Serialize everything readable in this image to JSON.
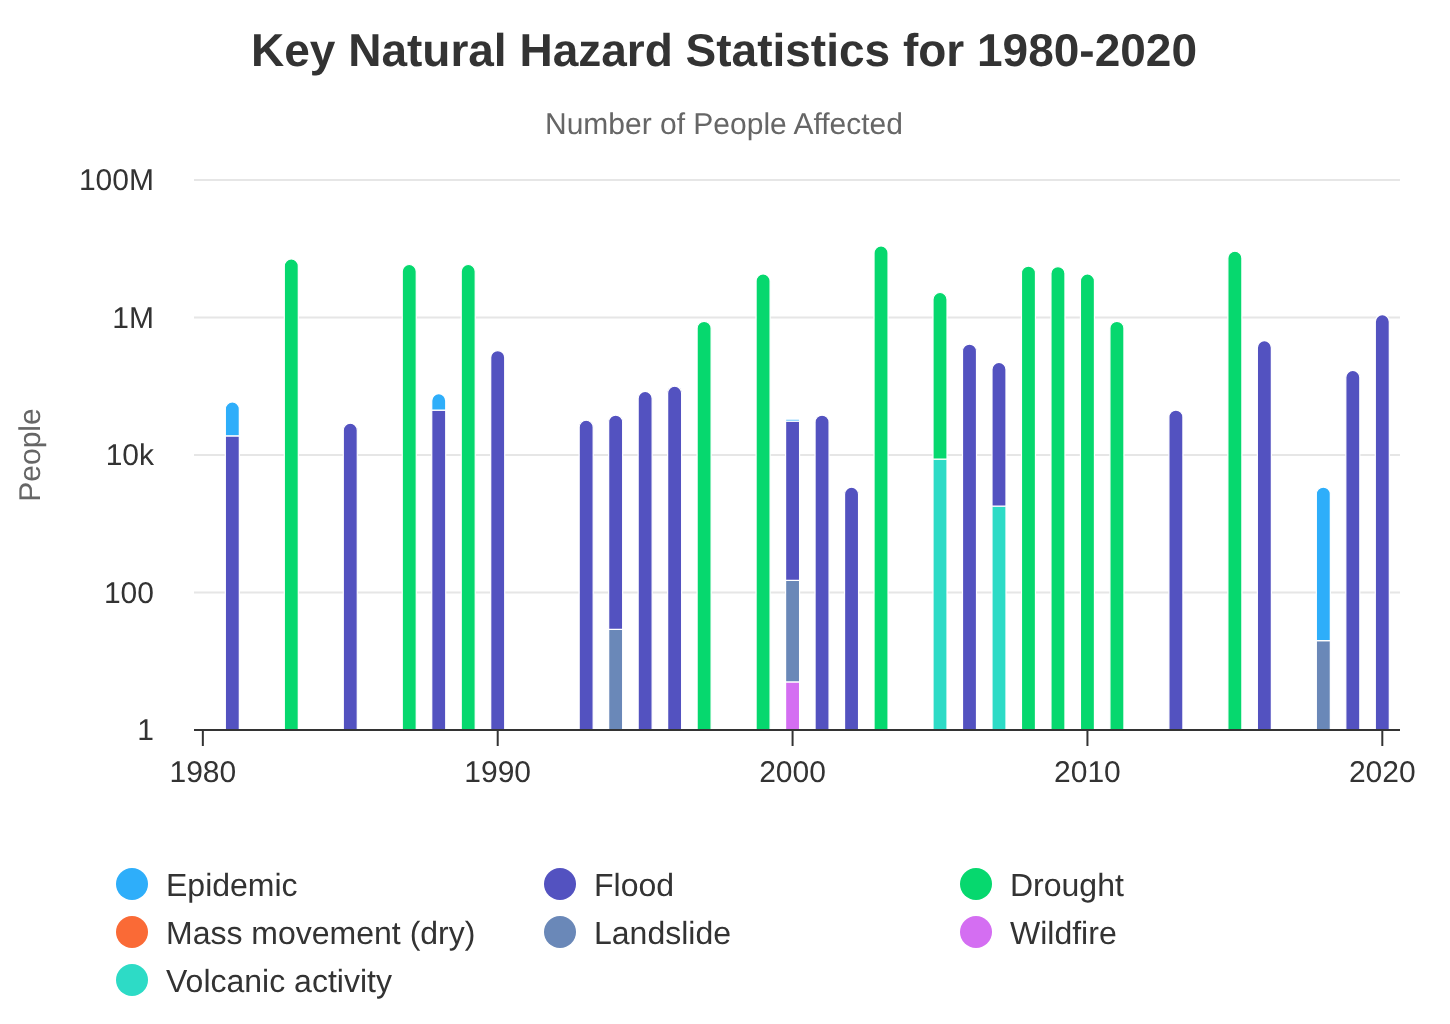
{
  "chart_data": {
    "type": "bar",
    "title": "Key Natural Hazard Statistics for 1980-2020",
    "subtitle": "Number of People Affected",
    "ylabel": "People",
    "stacked": true,
    "log": true,
    "grid": "y",
    "legend": "bottom",
    "x": [
      1981,
      1983,
      1985,
      1987,
      1988,
      1989,
      1990,
      1993,
      1994,
      1995,
      1996,
      1997,
      1999,
      2000,
      2001,
      2002,
      2003,
      2005,
      2006,
      2007,
      2008,
      2009,
      2010,
      2011,
      2013,
      2015,
      2016,
      2018,
      2019,
      2020
    ],
    "xlim": [
      1979.7,
      2020.6
    ],
    "xticks": [
      1980,
      1990,
      2000,
      2010,
      2020
    ],
    "ylim": [
      1,
      100000000
    ],
    "yticks": [
      {
        "value": 1,
        "label": "1"
      },
      {
        "value": 100,
        "label": "100"
      },
      {
        "value": 10000,
        "label": "10k"
      },
      {
        "value": 1000000,
        "label": "1M"
      },
      {
        "value": 100000000,
        "label": "100M"
      }
    ],
    "series": [
      {
        "name": "Volcanic activity",
        "color": "#2ddbc6",
        "values": [
          null,
          null,
          null,
          null,
          null,
          null,
          null,
          null,
          null,
          null,
          null,
          null,
          null,
          null,
          null,
          null,
          null,
          8700,
          null,
          1800,
          null,
          null,
          null,
          null,
          null,
          null,
          null,
          null,
          null,
          null
        ]
      },
      {
        "name": "Wildfire",
        "color": "#d46ef2",
        "values": [
          null,
          null,
          null,
          null,
          null,
          null,
          null,
          null,
          null,
          null,
          null,
          null,
          null,
          5,
          null,
          null,
          null,
          null,
          null,
          null,
          null,
          null,
          null,
          null,
          null,
          null,
          null,
          null,
          null,
          null
        ]
      },
      {
        "name": "Landslide",
        "color": "#6a88b8",
        "values": [
          null,
          null,
          null,
          null,
          null,
          null,
          null,
          null,
          29,
          null,
          null,
          null,
          null,
          145,
          null,
          null,
          null,
          null,
          null,
          null,
          null,
          null,
          null,
          null,
          null,
          null,
          null,
          20,
          null,
          null
        ]
      },
      {
        "name": "Mass movement (dry)",
        "color": "#fa6a36",
        "values": [
          null,
          null,
          null,
          null,
          null,
          null,
          null,
          null,
          null,
          null,
          null,
          null,
          null,
          null,
          null,
          null,
          null,
          null,
          null,
          null,
          null,
          null,
          null,
          null,
          null,
          null,
          null,
          null,
          null,
          null
        ]
      },
      {
        "name": "Drought",
        "color": "#06d86e",
        "values": [
          null,
          7100000,
          null,
          5900000,
          null,
          5900000,
          null,
          null,
          null,
          null,
          null,
          880000,
          4300000,
          null,
          null,
          null,
          11000000,
          2300000,
          null,
          null,
          5600000,
          5500000,
          4300000,
          880000,
          null,
          9200000,
          null,
          null,
          null,
          null
        ]
      },
      {
        "name": "Flood",
        "color": "#5352c0",
        "values": [
          19000,
          null,
          29000,
          null,
          45000,
          null,
          330000,
          32000,
          38000,
          84000,
          100000,
          null,
          null,
          31000,
          38000,
          3400,
          null,
          null,
          410000,
          220000,
          null,
          null,
          null,
          null,
          45000,
          null,
          460000,
          null,
          170000,
          1100000
        ]
      },
      {
        "name": "Epidemic",
        "color": "#2eaefa",
        "values": [
          40000,
          null,
          null,
          null,
          33000,
          null,
          null,
          null,
          null,
          null,
          null,
          null,
          null,
          2000,
          null,
          null,
          null,
          null,
          null,
          null,
          null,
          null,
          null,
          null,
          null,
          null,
          null,
          3400,
          null,
          null
        ]
      }
    ]
  }
}
